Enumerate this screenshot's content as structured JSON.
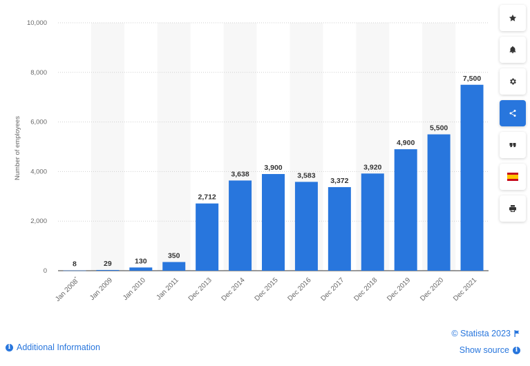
{
  "chart_data": {
    "type": "bar",
    "categories": [
      "Jan 2008*",
      "Jan 2009",
      "Jan 2010",
      "Jan 2011",
      "Dec 2013",
      "Dec 2014",
      "Dec 2015",
      "Dec 2016",
      "Dec 2017",
      "Dec 2018",
      "Dec 2019",
      "Dec 2020",
      "Dec 2021"
    ],
    "values": [
      8,
      29,
      130,
      350,
      2712,
      3638,
      3900,
      3583,
      3372,
      3920,
      4900,
      5500,
      7500
    ],
    "value_labels": [
      "8",
      "29",
      "130",
      "350",
      "2,712",
      "3,638",
      "3,900",
      "3,583",
      "3,372",
      "3,920",
      "4,900",
      "5,500",
      "7,500"
    ],
    "title": "",
    "xlabel": "",
    "ylabel": "Number of employees",
    "ylim": [
      0,
      10000
    ],
    "yticks": [
      0,
      2000,
      4000,
      6000,
      8000,
      10000
    ],
    "ytick_labels": [
      "0",
      "2,000",
      "4,000",
      "6,000",
      "8,000",
      "10,000"
    ],
    "grid": true,
    "bar_color": "#2876dd"
  },
  "sidebar": {
    "icons": [
      "star-icon",
      "bell-icon",
      "gear-icon",
      "share-icon",
      "quote-icon",
      "flag-es-icon",
      "print-icon"
    ],
    "active_color": "#2876dd"
  },
  "footer": {
    "copyright": "© Statista 2023",
    "additional_info": "Additional Information",
    "show_source": "Show source"
  }
}
